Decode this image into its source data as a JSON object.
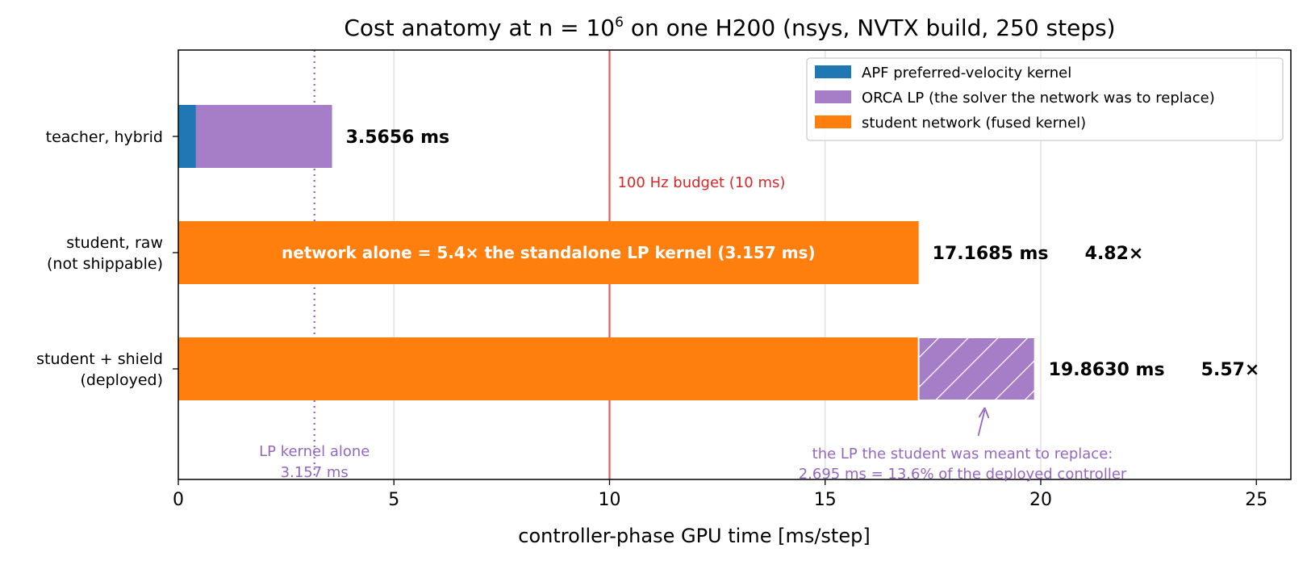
{
  "chart_data": {
    "type": "bar",
    "orientation": "horizontal",
    "stacked": true,
    "title_prefix": "Cost anatomy at n = 10",
    "title_superscript": "6",
    "title_suffix": " on one H200 (nsys, NVTX build, 250 steps)",
    "xlabel": "controller-phase GPU time [ms/step]",
    "xlim": [
      0,
      25.8
    ],
    "xticks": [
      "0",
      "5",
      "10",
      "15",
      "20",
      "25"
    ],
    "grid": "x",
    "legend_placement": "top-right",
    "categories": [
      [
        "teacher, hybrid"
      ],
      [
        "student, raw",
        "(not shippable)"
      ],
      [
        "student + shield",
        "(deployed)"
      ]
    ],
    "series": [
      {
        "name": "APF preferred-velocity kernel",
        "color": "#1f77b4",
        "values": [
          0.41,
          0,
          0
        ]
      },
      {
        "name": "ORCA LP (the solver the network was to replace)",
        "color": "#a67ec8",
        "values": [
          3.1556,
          0,
          2.695
        ]
      },
      {
        "name": "student network (fused kernel)",
        "color": "#ff7f0e",
        "values": [
          0,
          17.1685,
          17.168
        ]
      }
    ],
    "hatched_segment": {
      "category_index": 2,
      "series_index": 1
    },
    "totals": [
      "3.5656 ms",
      "17.1685 ms",
      "19.8630 ms"
    ],
    "ratios": [
      "",
      "4.82×",
      "5.57×"
    ],
    "inbar_label": "network alone = 5.4× the standalone LP kernel (3.157 ms)",
    "reference_lines": [
      {
        "x": 10,
        "color": "#d62728",
        "style": "solid",
        "label": "100 Hz budget (10 ms)"
      },
      {
        "x": 3.157,
        "color": "#9467bd",
        "style": "dotted",
        "label": [
          "LP kernel alone",
          "3.157 ms"
        ]
      }
    ],
    "annotation": {
      "lines": [
        "the LP the student was meant to replace:",
        "2.695 ms = 13.6% of the deployed controller"
      ]
    }
  }
}
